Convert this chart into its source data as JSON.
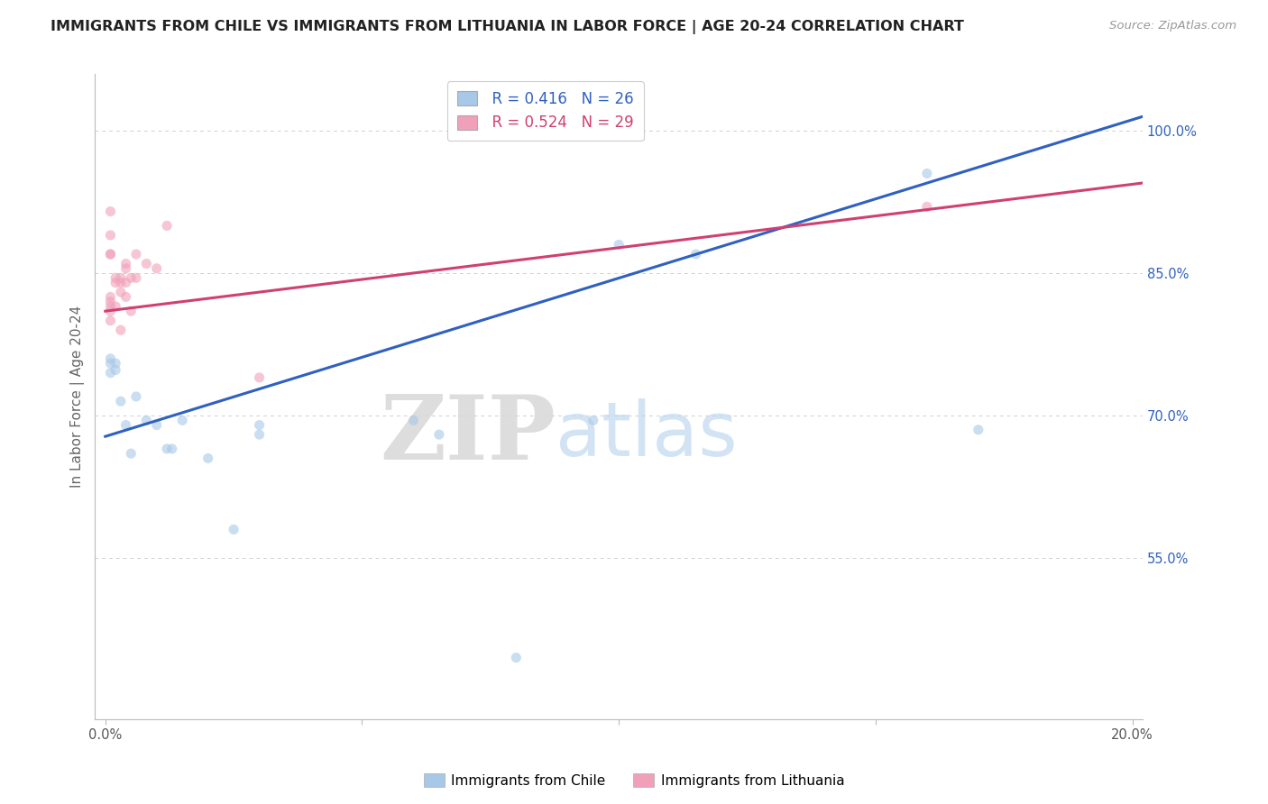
{
  "title": "IMMIGRANTS FROM CHILE VS IMMIGRANTS FROM LITHUANIA IN LABOR FORCE | AGE 20-24 CORRELATION CHART",
  "source": "Source: ZipAtlas.com",
  "ylabel": "In Labor Force | Age 20-24",
  "xlim": [
    -0.002,
    0.202
  ],
  "ylim": [
    0.38,
    1.06
  ],
  "xtick_vals": [
    0.0,
    0.05,
    0.1,
    0.15,
    0.2
  ],
  "xticklabels": [
    "0.0%",
    "",
    "",
    "",
    "20.0%"
  ],
  "ytick_vals": [
    0.55,
    0.7,
    0.85,
    1.0
  ],
  "yticklabels": [
    "55.0%",
    "70.0%",
    "85.0%",
    "100.0%"
  ],
  "watermark_zip": "ZIP",
  "watermark_atlas": "atlas",
  "legend_r_chile": "R = 0.416",
  "legend_n_chile": "N = 26",
  "legend_r_lith": "R = 0.524",
  "legend_n_lith": "N = 29",
  "chile_scatter_x": [
    0.001,
    0.001,
    0.001,
    0.002,
    0.002,
    0.003,
    0.004,
    0.005,
    0.006,
    0.008,
    0.01,
    0.012,
    0.013,
    0.015,
    0.02,
    0.025,
    0.03,
    0.03,
    0.06,
    0.065,
    0.08,
    0.095,
    0.1,
    0.115,
    0.16,
    0.17
  ],
  "chile_scatter_y": [
    0.755,
    0.745,
    0.76,
    0.755,
    0.748,
    0.715,
    0.69,
    0.66,
    0.72,
    0.695,
    0.69,
    0.665,
    0.665,
    0.695,
    0.655,
    0.58,
    0.69,
    0.68,
    0.695,
    0.68,
    0.445,
    0.695,
    0.88,
    0.87,
    0.955,
    0.685
  ],
  "lithuania_scatter_x": [
    0.001,
    0.001,
    0.001,
    0.001,
    0.001,
    0.001,
    0.002,
    0.002,
    0.002,
    0.003,
    0.003,
    0.003,
    0.003,
    0.004,
    0.004,
    0.004,
    0.004,
    0.005,
    0.005,
    0.006,
    0.006,
    0.008,
    0.01,
    0.012,
    0.03,
    0.16,
    0.001,
    0.001,
    0.001
  ],
  "lithuania_scatter_y": [
    0.81,
    0.82,
    0.8,
    0.815,
    0.825,
    0.87,
    0.815,
    0.84,
    0.845,
    0.84,
    0.83,
    0.845,
    0.79,
    0.855,
    0.86,
    0.825,
    0.84,
    0.845,
    0.81,
    0.87,
    0.845,
    0.86,
    0.855,
    0.9,
    0.74,
    0.92,
    0.915,
    0.89,
    0.87
  ],
  "chile_line_x0": 0.0,
  "chile_line_x1": 0.202,
  "chile_line_y0": 0.678,
  "chile_line_y1": 1.015,
  "lithuania_line_x0": 0.0,
  "lithuania_line_x1": 0.202,
  "lithuania_line_y0": 0.81,
  "lithuania_line_y1": 0.945,
  "chile_scatter_color": "#a8c8e8",
  "lithuania_scatter_color": "#f0a0b8",
  "chile_line_color": "#3060c0",
  "lithuania_line_color": "#d04070",
  "scatter_alpha": 0.6,
  "scatter_size": 65,
  "background_color": "#ffffff",
  "grid_color": "#d0d0d0",
  "title_fontsize": 11.5,
  "axis_label_fontsize": 11,
  "tick_fontsize": 10.5,
  "ytick_color": "#3060c0",
  "xtick_color": "#555555"
}
